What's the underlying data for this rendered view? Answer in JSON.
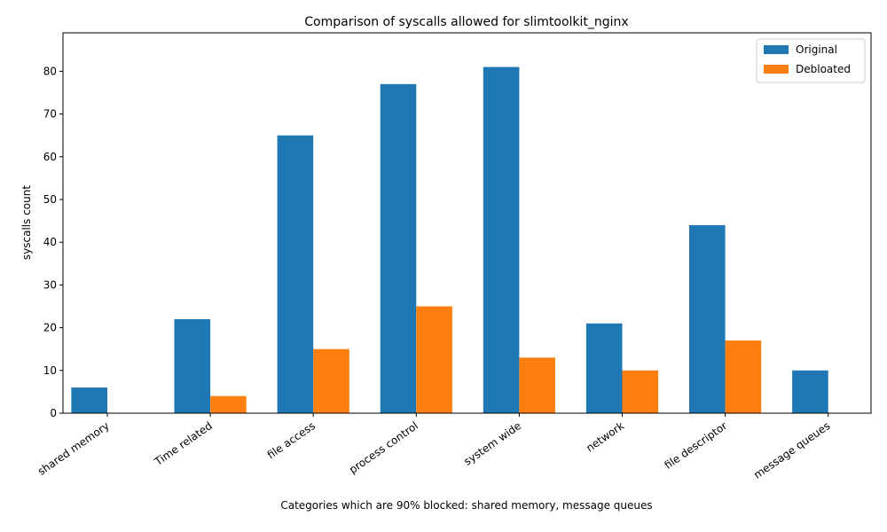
{
  "chart_data": {
    "type": "bar",
    "title": "Comparison of syscalls allowed for slimtoolkit_nginx",
    "xlabel": "Categories which are 90% blocked: shared memory, message queues",
    "ylabel": "syscalls count",
    "categories": [
      "shared memory",
      "Time related",
      "file access",
      "process control",
      "system wide",
      "network",
      "file descriptor",
      "message queues"
    ],
    "series": [
      {
        "name": "Original",
        "values": [
          6,
          22,
          65,
          77,
          81,
          21,
          44,
          10
        ],
        "color": "#1f77b4"
      },
      {
        "name": "Debloated",
        "values": [
          0,
          4,
          15,
          25,
          13,
          10,
          17,
          0
        ],
        "color": "#ff7f0e"
      }
    ],
    "ylim": [
      0,
      89
    ],
    "yticks": [
      0,
      10,
      20,
      30,
      40,
      50,
      60,
      70,
      80
    ],
    "grid": false,
    "legend_position": "top-right"
  }
}
